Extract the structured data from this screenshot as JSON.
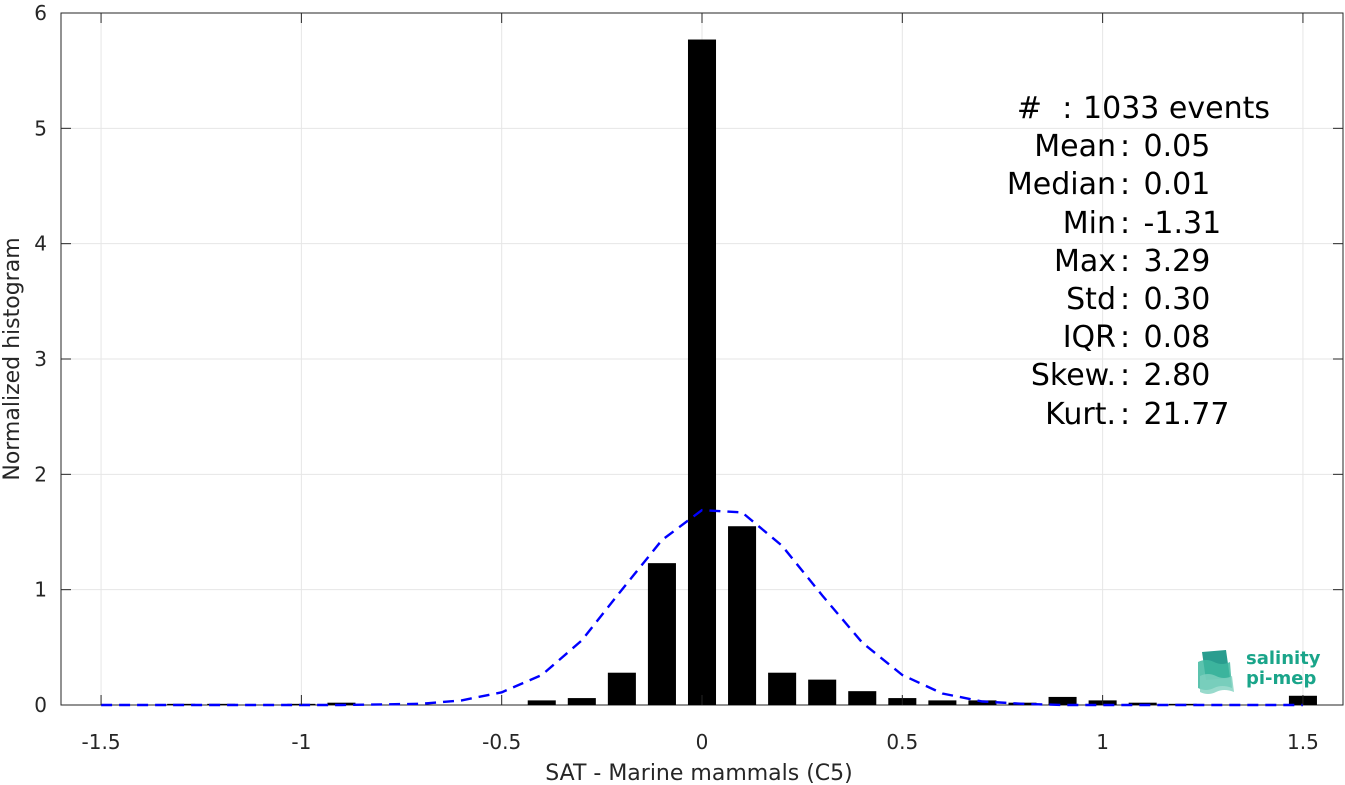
{
  "chart_data": {
    "type": "bar",
    "title": "",
    "xlabel": "SAT - Marine mammals (C5)",
    "ylabel": "Normalized histogram",
    "xlim": [
      -1.6,
      1.6
    ],
    "ylim": [
      0,
      6
    ],
    "grid": true,
    "xticks": [
      -1.5,
      -1,
      -0.5,
      0,
      0.5,
      1,
      1.5
    ],
    "xtick_labels": [
      "-1.5",
      "-1",
      "-0.5",
      "0",
      "0.5",
      "1",
      "1.5"
    ],
    "yticks": [
      0,
      1,
      2,
      3,
      4,
      5,
      6
    ],
    "ytick_labels": [
      "0",
      "1",
      "2",
      "3",
      "4",
      "5",
      "6"
    ],
    "bar_width": 0.07,
    "bar_color": "#000000",
    "bars": [
      {
        "x": -1.3,
        "y": 0.01
      },
      {
        "x": -1.2,
        "y": 0.01
      },
      {
        "x": -1.0,
        "y": 0.01
      },
      {
        "x": -0.9,
        "y": 0.02
      },
      {
        "x": -0.4,
        "y": 0.04
      },
      {
        "x": -0.3,
        "y": 0.06
      },
      {
        "x": -0.2,
        "y": 0.28
      },
      {
        "x": -0.1,
        "y": 1.23
      },
      {
        "x": 0.0,
        "y": 5.77
      },
      {
        "x": 0.1,
        "y": 1.55
      },
      {
        "x": 0.2,
        "y": 0.28
      },
      {
        "x": 0.3,
        "y": 0.22
      },
      {
        "x": 0.4,
        "y": 0.12
      },
      {
        "x": 0.5,
        "y": 0.06
      },
      {
        "x": 0.6,
        "y": 0.04
      },
      {
        "x": 0.7,
        "y": 0.04
      },
      {
        "x": 0.8,
        "y": 0.02
      },
      {
        "x": 0.9,
        "y": 0.07
      },
      {
        "x": 1.0,
        "y": 0.04
      },
      {
        "x": 1.1,
        "y": 0.02
      },
      {
        "x": 1.2,
        "y": 0.01
      },
      {
        "x": 1.5,
        "y": 0.08
      }
    ],
    "fit_curve": {
      "style": "dashed",
      "color": "#0000ff",
      "x": [
        -1.5,
        -1.3,
        -1.1,
        -0.9,
        -0.7,
        -0.6,
        -0.5,
        -0.4,
        -0.3,
        -0.2,
        -0.1,
        0.0,
        0.1,
        0.2,
        0.3,
        0.4,
        0.5,
        0.6,
        0.7,
        0.8,
        0.9,
        1.1,
        1.3,
        1.5
      ],
      "y": [
        0.0,
        0.0,
        0.0,
        0.0,
        0.01,
        0.04,
        0.11,
        0.26,
        0.56,
        1.0,
        1.43,
        1.69,
        1.67,
        1.38,
        0.95,
        0.54,
        0.26,
        0.1,
        0.03,
        0.01,
        0.0,
        0.0,
        0.0,
        0.0
      ]
    }
  },
  "stats": [
    {
      "label": "#  ",
      "value": "1033 events"
    },
    {
      "label": "Mean",
      "value": "0.05"
    },
    {
      "label": "Median",
      "value": "0.01"
    },
    {
      "label": "Min",
      "value": "-1.31"
    },
    {
      "label": "Max",
      "value": "3.29"
    },
    {
      "label": "Std",
      "value": "0.30"
    },
    {
      "label": "IQR",
      "value": "0.08"
    },
    {
      "label": "Skew.",
      "value": "2.80"
    },
    {
      "label": "Kurt.",
      "value": "21.77"
    }
  ],
  "stat_separator": ":",
  "logo": {
    "line1": "salinity",
    "line2": "pi-mep",
    "color": "#1aa58a"
  }
}
